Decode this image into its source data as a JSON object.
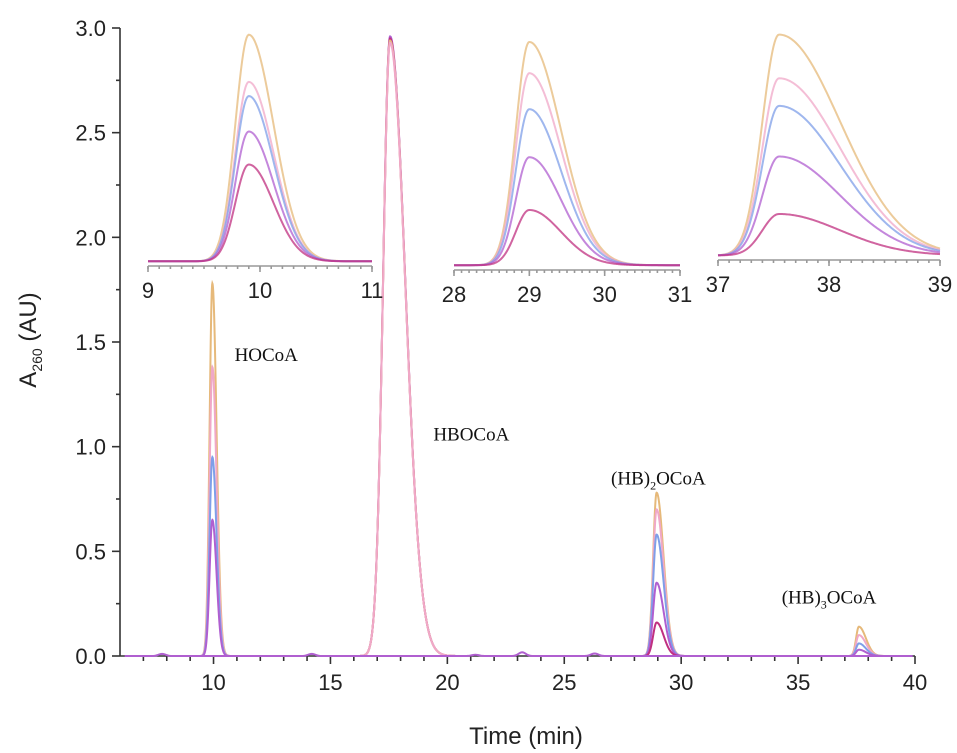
{
  "chart_data": {
    "type": "line",
    "xlabel": "Time (min)",
    "ylabel_main": "A",
    "ylabel_sub": "260",
    "ylabel_unit": " (AU)",
    "xlim": [
      6,
      40
    ],
    "ylim": [
      0,
      3.0
    ],
    "x_ticks": [
      10,
      15,
      20,
      25,
      30,
      35,
      40
    ],
    "y_ticks": [
      0.0,
      0.5,
      1.0,
      1.5,
      2.0,
      2.5,
      3.0
    ],
    "y_tick_labels": [
      "0.0",
      "0.5",
      "1.0",
      "1.5",
      "2.0",
      "2.5",
      "3.0"
    ],
    "grid": false,
    "peak_labels": [
      {
        "text": "HOCoA",
        "x": 10.9,
        "y": 1.41
      },
      {
        "text": "HBOCoA",
        "x": 19.4,
        "y": 1.03
      },
      {
        "text": "(HB)",
        "sub": "2",
        "after": "OCoA",
        "x": 27.0,
        "y": 0.82
      },
      {
        "text": "(HB)",
        "sub": "3",
        "after": "OCoA",
        "x": 34.3,
        "y": 0.25
      }
    ],
    "peaks": [
      {
        "center": 9.95,
        "sigma_left": 0.12,
        "sigma_right": 0.18,
        "heights": [
          1.78,
          1.38,
          0.95,
          0.65
        ]
      },
      {
        "center": 17.55,
        "sigma_left": 0.3,
        "sigma_right": 0.65,
        "heights": [
          2.96,
          2.95,
          2.94,
          2.93
        ]
      },
      {
        "center": 28.95,
        "sigma_left": 0.15,
        "sigma_right": 0.3,
        "heights": [
          0.78,
          0.7,
          0.58,
          0.35,
          0.16
        ]
      },
      {
        "center": 37.6,
        "sigma_left": 0.12,
        "sigma_right": 0.3,
        "heights": [
          0.14,
          0.1,
          0.06,
          0.03
        ]
      }
    ],
    "series_colors": [
      "#e6b97a",
      "#f0a8c8",
      "#7f9fe8",
      "#b05fd0",
      "#c03080"
    ],
    "insets": [
      {
        "xlim": [
          9,
          11
        ],
        "x_ticks": [
          9,
          10,
          11
        ],
        "x_tick_labels": [
          "9",
          "10",
          "11"
        ],
        "center": 9.9,
        "sigma_left": 0.12,
        "sigma_right": 0.22,
        "heights": [
          0.98,
          0.78,
          0.72,
          0.57,
          0.43
        ]
      },
      {
        "xlim": [
          28,
          31
        ],
        "x_ticks": [
          28,
          29,
          30,
          31
        ],
        "x_tick_labels": [
          "28",
          "29",
          "30",
          "31"
        ],
        "center": 29.0,
        "sigma_left": 0.18,
        "sigma_right": 0.42,
        "heights": [
          0.95,
          0.82,
          0.67,
          0.47,
          0.25
        ]
      },
      {
        "xlim": [
          37,
          39
        ],
        "x_ticks": [
          37,
          38,
          39
        ],
        "x_tick_labels": [
          "37",
          "38",
          "39"
        ],
        "center": 37.55,
        "sigma_left": 0.15,
        "sigma_right": 0.55,
        "heights": [
          0.98,
          0.79,
          0.67,
          0.45,
          0.2
        ]
      }
    ]
  }
}
